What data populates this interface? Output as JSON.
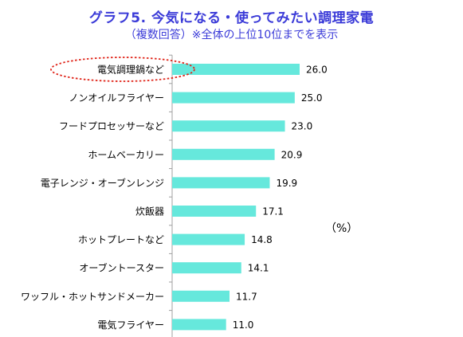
{
  "title": "グラフ5. 今気になる・使ってみたい調理家電",
  "subtitle": "（複数回答）※全体の上位10位までを表示",
  "unit_label": "（%）",
  "colors": {
    "bar": "#66e8dc",
    "title": "#3b3bd8",
    "highlight": "#e0261b",
    "axis": "#a0a0a0"
  },
  "chart_data": {
    "type": "bar",
    "orientation": "horizontal",
    "categories": [
      "電気調理鍋など",
      "ノンオイルフライヤー",
      "フードプロセッサーなど",
      "ホームベーカリー",
      "電子レンジ・オーブンレンジ",
      "炊飯器",
      "ホットプレートなど",
      "オーブントースター",
      "ワッフル・ホットサンドメーカー",
      "電気フライヤー"
    ],
    "values": [
      26.0,
      25.0,
      23.0,
      20.9,
      19.9,
      17.1,
      14.8,
      14.1,
      11.7,
      11.0
    ],
    "value_labels": [
      "26.0",
      "25.0",
      "23.0",
      "20.9",
      "19.9",
      "17.1",
      "14.8",
      "14.1",
      "11.7",
      "11.0"
    ],
    "xlim": [
      0,
      30
    ],
    "grid": false,
    "highlighted_category": "電気調理鍋など"
  }
}
